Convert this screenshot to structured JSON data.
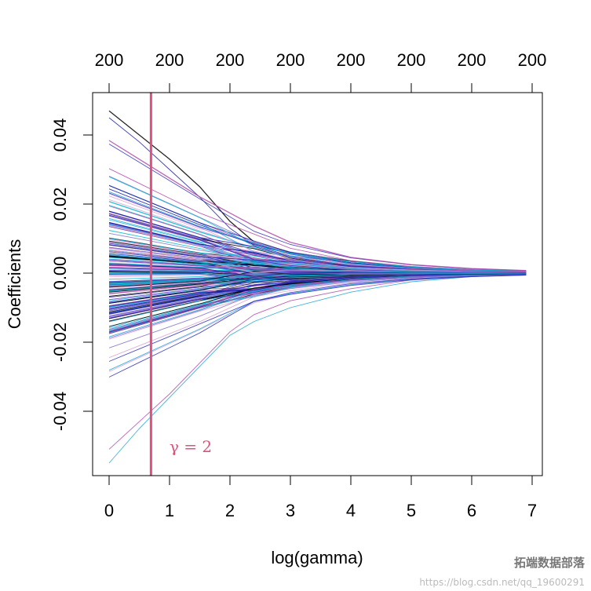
{
  "chart_data": {
    "type": "line",
    "xlabel": "log(gamma)",
    "ylabel": "Coefficients",
    "xlim": [
      0,
      7
    ],
    "ylim": [
      -0.054,
      0.048
    ],
    "x_ticks": [
      "0",
      "1",
      "2",
      "3",
      "4",
      "5",
      "6",
      "7"
    ],
    "y_ticks": [
      "-0.04",
      "-0.02",
      "0.00",
      "0.02",
      "0.04"
    ],
    "top_axis_labels": [
      "200",
      "200",
      "200",
      "200",
      "200",
      "200",
      "200",
      "200"
    ],
    "vertical_line": {
      "x": 0.693,
      "color": "#e0507a"
    },
    "annotation": {
      "text": "γ = 2",
      "x": 1.0,
      "y": -0.05,
      "color": "#e0507a"
    },
    "series_count": 200,
    "series_colors": [
      "#000000",
      "#1a1aa6",
      "#1fa5d8",
      "#b04aa8",
      "#d9a0d0",
      "#7b6fd0",
      "#00b4d0",
      "#3030c0"
    ],
    "x": [
      0,
      0.5,
      1,
      1.5,
      2,
      2.4,
      3,
      4,
      5,
      6,
      6.9
    ],
    "series_extremes": [
      {
        "values": [
          0.047,
          0.04,
          0.033,
          0.025,
          0.015,
          0.009,
          0.006,
          0.0035,
          0.0018,
          0.0008,
          0.0003
        ]
      },
      {
        "values": [
          0.045,
          0.038,
          0.03,
          0.022,
          0.013,
          0.008,
          0.005,
          0.003,
          0.0016,
          0.0007,
          0.0003
        ]
      },
      {
        "values": [
          -0.055,
          -0.045,
          -0.036,
          -0.027,
          -0.018,
          -0.014,
          -0.01,
          -0.0055,
          -0.0025,
          -0.001,
          -0.0004
        ]
      },
      {
        "values": [
          -0.051,
          -0.043,
          -0.035,
          -0.026,
          -0.017,
          -0.012,
          -0.008,
          -0.0045,
          -0.002,
          -0.0008,
          -0.0003
        ]
      }
    ]
  },
  "watermark": {
    "title": "拓端数据部落",
    "url": "https://blog.csdn.net/qq_19600291"
  }
}
